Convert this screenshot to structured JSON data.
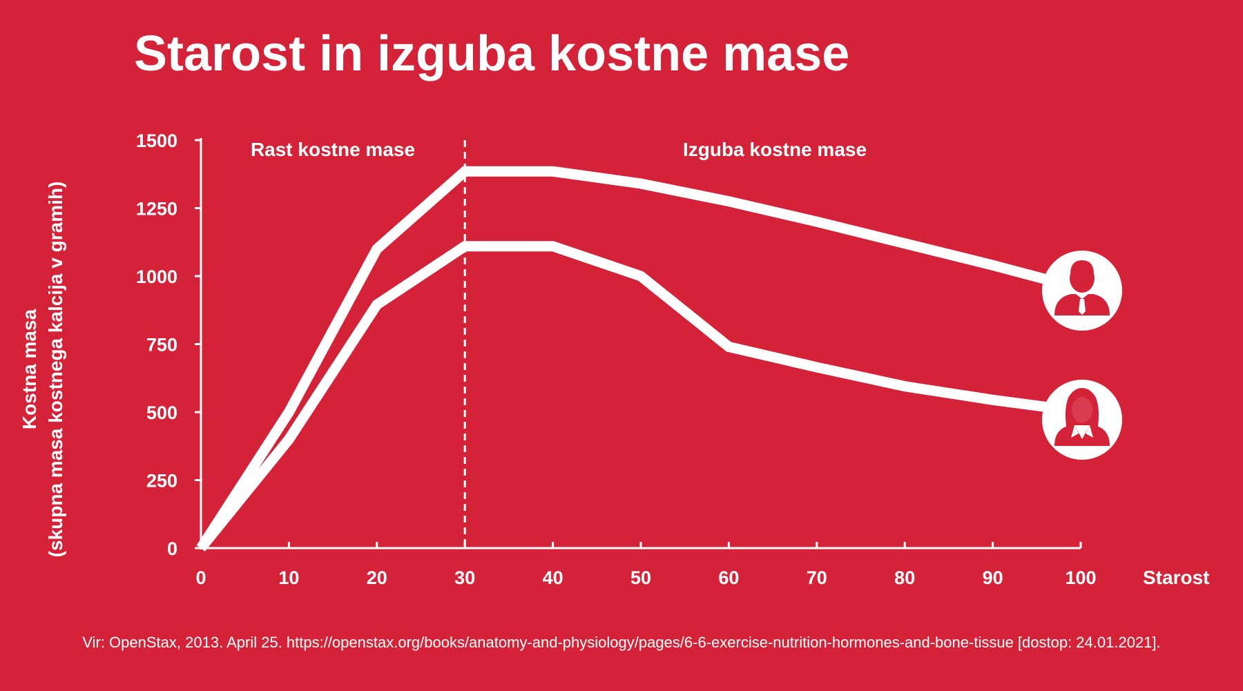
{
  "chart_data": {
    "type": "line",
    "title": "Starost in izguba kostne mase",
    "xlabel": "Starost",
    "ylabel_line1": "Kostna masa",
    "ylabel_line2": "(skupna masa kostnega kalcija v gramih)",
    "xlim": [
      0,
      100
    ],
    "ylim": [
      0,
      1500
    ],
    "x_ticks": [
      0,
      10,
      20,
      30,
      40,
      50,
      60,
      70,
      80,
      90,
      100
    ],
    "y_ticks": [
      0,
      250,
      500,
      750,
      1000,
      1250,
      1500
    ],
    "grid": false,
    "divider_x": 30,
    "regions": [
      "Rast kostne mase",
      "Izguba kostne mase"
    ],
    "series": [
      {
        "icon": "man-icon",
        "x": [
          0,
          10,
          20,
          30,
          40,
          50,
          60,
          70,
          80,
          90,
          97
        ],
        "values": [
          0,
          500,
          1100,
          1385,
          1385,
          1340,
          1275,
          1200,
          1120,
          1040,
          980
        ]
      },
      {
        "icon": "woman-icon",
        "x": [
          0,
          10,
          20,
          30,
          40,
          50,
          60,
          70,
          80,
          90,
          97
        ],
        "values": [
          0,
          400,
          895,
          1110,
          1110,
          1000,
          740,
          665,
          595,
          545,
          515
        ]
      }
    ]
  },
  "source": "Vir: OpenStax, 2013. April 25. https://openstax.org/books/anatomy-and-physiology/pages/6-6-exercise-nutrition-hormones-and-bone-tissue [dostop: 24.01.2021].",
  "colors": {
    "background": "#d42238",
    "foreground": "#ffffff"
  }
}
